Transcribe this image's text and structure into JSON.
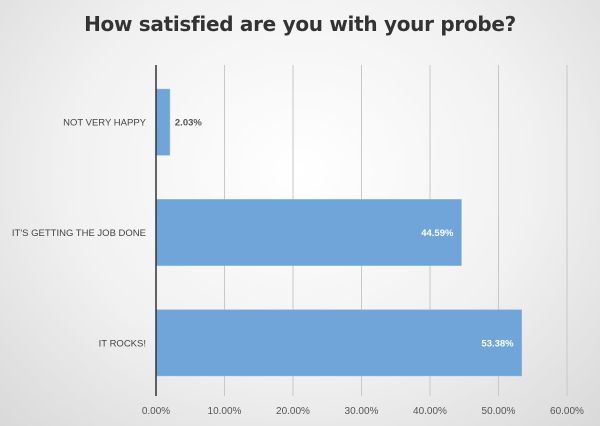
{
  "chart_data": {
    "type": "bar",
    "orientation": "horizontal",
    "title": "How satisfied are you with your probe?",
    "categories": [
      "NOT VERY HAPPY",
      "IT'S GETTING THE JOB DONE",
      "IT ROCKS!"
    ],
    "values": [
      2.03,
      44.59,
      53.38
    ],
    "data_labels": [
      "2.03%",
      "44.59%",
      "53.38%"
    ],
    "xlim": [
      0,
      60
    ],
    "xticks": [
      "0.00%",
      "10.00%",
      "20.00%",
      "30.00%",
      "40.00%",
      "50.00%",
      "60.00%"
    ],
    "grid": true,
    "bar_color": "#6fa5d9"
  }
}
